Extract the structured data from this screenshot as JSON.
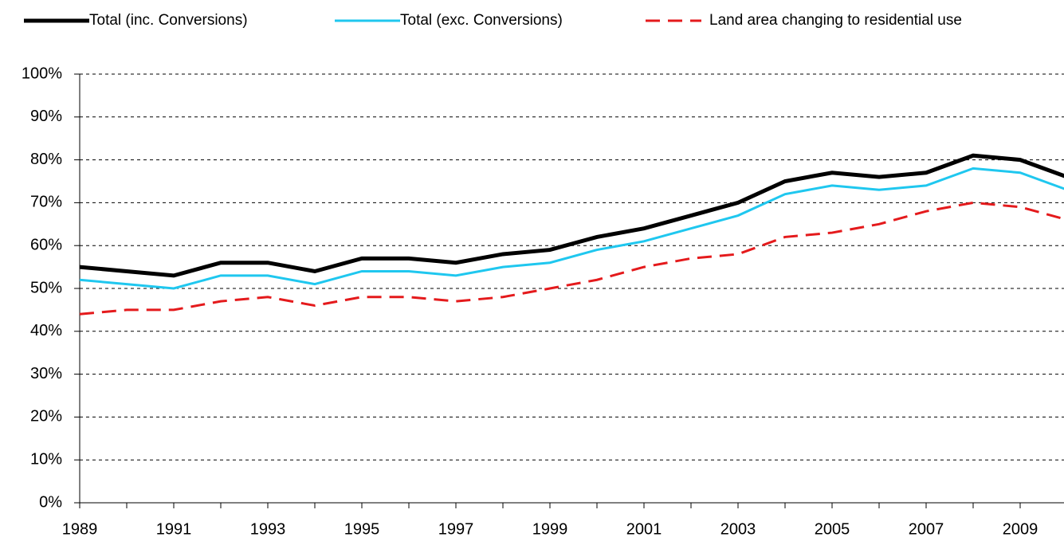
{
  "chart_data": {
    "type": "line",
    "x": [
      1989,
      1990,
      1991,
      1992,
      1993,
      1994,
      1995,
      1996,
      1997,
      1998,
      1999,
      2000,
      2001,
      2002,
      2003,
      2004,
      2005,
      2006,
      2007,
      2008,
      2009,
      2010
    ],
    "series": [
      {
        "name": "Total (inc. Conversions)",
        "color": "#000000",
        "dash": false,
        "values": [
          55,
          54,
          53,
          56,
          56,
          54,
          57,
          57,
          56,
          58,
          59,
          62,
          64,
          67,
          70,
          75,
          77,
          76,
          77,
          81,
          80,
          76
        ]
      },
      {
        "name": "Total (exc. Conversions)",
        "color": "#1fc7ef",
        "dash": false,
        "values": [
          52,
          51,
          50,
          53,
          53,
          51,
          54,
          54,
          53,
          55,
          56,
          59,
          61,
          64,
          67,
          72,
          74,
          73,
          74,
          78,
          77,
          73
        ]
      },
      {
        "name": "Land area changing to residential use",
        "color": "#e41a1c",
        "dash": true,
        "values": [
          44,
          45,
          45,
          47,
          48,
          46,
          48,
          48,
          47,
          48,
          50,
          52,
          55,
          57,
          58,
          62,
          63,
          65,
          68,
          70,
          69,
          66
        ]
      }
    ],
    "xlim": [
      1989,
      2010
    ],
    "xticks": [
      1989,
      1991,
      1993,
      1995,
      1997,
      1999,
      2001,
      2003,
      2005,
      2007,
      2009
    ],
    "ylim": [
      0,
      100
    ],
    "yticks": [
      {
        "value": 0,
        "label": "0%"
      },
      {
        "value": 10,
        "label": "10%"
      },
      {
        "value": 20,
        "label": "20%"
      },
      {
        "value": 30,
        "label": "30%"
      },
      {
        "value": 40,
        "label": "40%"
      },
      {
        "value": 50,
        "label": "50%"
      },
      {
        "value": 60,
        "label": "60%"
      },
      {
        "value": 70,
        "label": "70%"
      },
      {
        "value": 80,
        "label": "80%"
      },
      {
        "value": 90,
        "label": "90%"
      },
      {
        "value": 100,
        "label": "100%"
      }
    ],
    "grid": true,
    "legend": "top"
  }
}
